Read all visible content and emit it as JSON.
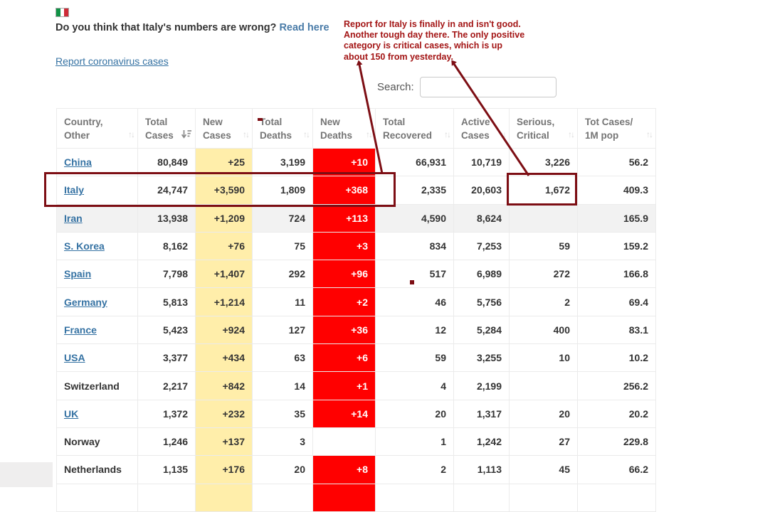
{
  "header": {
    "flag": "italy-flag-icon",
    "question_bold": "Do you think that Italy's numbers are wrong?",
    "read_here_label": "Read here",
    "report_link_label": "Report coronavirus cases"
  },
  "annotation": {
    "color": "#a31515",
    "shape_color": "#7d0e14",
    "lines": [
      "Report for Italy is finally in and isn't good.",
      "Another tough day there.  The only positive",
      "category is critical cases, which is up",
      "about 150 from yesterday."
    ]
  },
  "search": {
    "label": "Search:",
    "value": ""
  },
  "colors": {
    "new_cases_bg": "#ffeeaa",
    "new_deaths_bg": "#ff0000",
    "link_blue": "#3572a3",
    "shaded_row": "#f2f2f2"
  },
  "table": {
    "columns": [
      {
        "id": "country",
        "lines": [
          "Country,",
          "Other"
        ],
        "sort": "none"
      },
      {
        "id": "total-cases",
        "lines": [
          "Total",
          "Cases"
        ],
        "sort": "desc"
      },
      {
        "id": "new-cases",
        "lines": [
          "New",
          "Cases"
        ],
        "sort": "none"
      },
      {
        "id": "total-deaths",
        "lines": [
          "Total",
          "Deaths"
        ],
        "sort": "none"
      },
      {
        "id": "new-deaths",
        "lines": [
          "New",
          "Deaths"
        ],
        "sort": "none"
      },
      {
        "id": "total-recovered",
        "lines": [
          "Total",
          "Recovered"
        ],
        "sort": "none"
      },
      {
        "id": "active-cases",
        "lines": [
          "Active",
          "Cases"
        ],
        "sort": "none"
      },
      {
        "id": "serious-critical",
        "lines": [
          "Serious,",
          "Critical"
        ],
        "sort": "none"
      },
      {
        "id": "cases-per-1m",
        "lines": [
          "Tot Cases/",
          "1M pop"
        ],
        "sort": "none"
      }
    ],
    "rows": [
      {
        "name": "China",
        "link": true,
        "shaded": false,
        "red": true,
        "cells": [
          "80,849",
          "+25",
          "3,199",
          "+10",
          "66,931",
          "10,719",
          "3,226",
          "56.2"
        ]
      },
      {
        "name": "Italy",
        "link": true,
        "shaded": false,
        "red": true,
        "cells": [
          "24,747",
          "+3,590",
          "1,809",
          "+368",
          "2,335",
          "20,603",
          "1,672",
          "409.3"
        ]
      },
      {
        "name": "Iran",
        "link": true,
        "shaded": true,
        "red": true,
        "cells": [
          "13,938",
          "+1,209",
          "724",
          "+113",
          "4,590",
          "8,624",
          "",
          "165.9"
        ]
      },
      {
        "name": "S. Korea",
        "link": true,
        "shaded": false,
        "red": true,
        "cells": [
          "8,162",
          "+76",
          "75",
          "+3",
          "834",
          "7,253",
          "59",
          "159.2"
        ]
      },
      {
        "name": "Spain",
        "link": true,
        "shaded": false,
        "red": true,
        "cells": [
          "7,798",
          "+1,407",
          "292",
          "+96",
          "517",
          "6,989",
          "272",
          "166.8"
        ]
      },
      {
        "name": "Germany",
        "link": true,
        "shaded": false,
        "red": true,
        "cells": [
          "5,813",
          "+1,214",
          "11",
          "+2",
          "46",
          "5,756",
          "2",
          "69.4"
        ]
      },
      {
        "name": "France",
        "link": true,
        "shaded": false,
        "red": true,
        "cells": [
          "5,423",
          "+924",
          "127",
          "+36",
          "12",
          "5,284",
          "400",
          "83.1"
        ]
      },
      {
        "name": "USA",
        "link": true,
        "shaded": false,
        "red": true,
        "cells": [
          "3,377",
          "+434",
          "63",
          "+6",
          "59",
          "3,255",
          "10",
          "10.2"
        ]
      },
      {
        "name": "Switzerland",
        "link": false,
        "shaded": false,
        "red": true,
        "cells": [
          "2,217",
          "+842",
          "14",
          "+1",
          "4",
          "2,199",
          "",
          "256.2"
        ]
      },
      {
        "name": "UK",
        "link": true,
        "shaded": false,
        "red": true,
        "cells": [
          "1,372",
          "+232",
          "35",
          "+14",
          "20",
          "1,317",
          "20",
          "20.2"
        ]
      },
      {
        "name": "Norway",
        "link": false,
        "shaded": false,
        "red": false,
        "cells": [
          "1,246",
          "+137",
          "3",
          "",
          "1",
          "1,242",
          "27",
          "229.8"
        ]
      },
      {
        "name": "Netherlands",
        "link": false,
        "shaded": false,
        "red": true,
        "cells": [
          "1,135",
          "+176",
          "20",
          "+8",
          "2",
          "1,113",
          "45",
          "66.2"
        ]
      },
      {
        "name": "",
        "link": false,
        "shaded": false,
        "red": true,
        "cells": [
          "",
          "",
          "",
          "",
          "",
          "",
          "",
          ""
        ]
      }
    ]
  }
}
